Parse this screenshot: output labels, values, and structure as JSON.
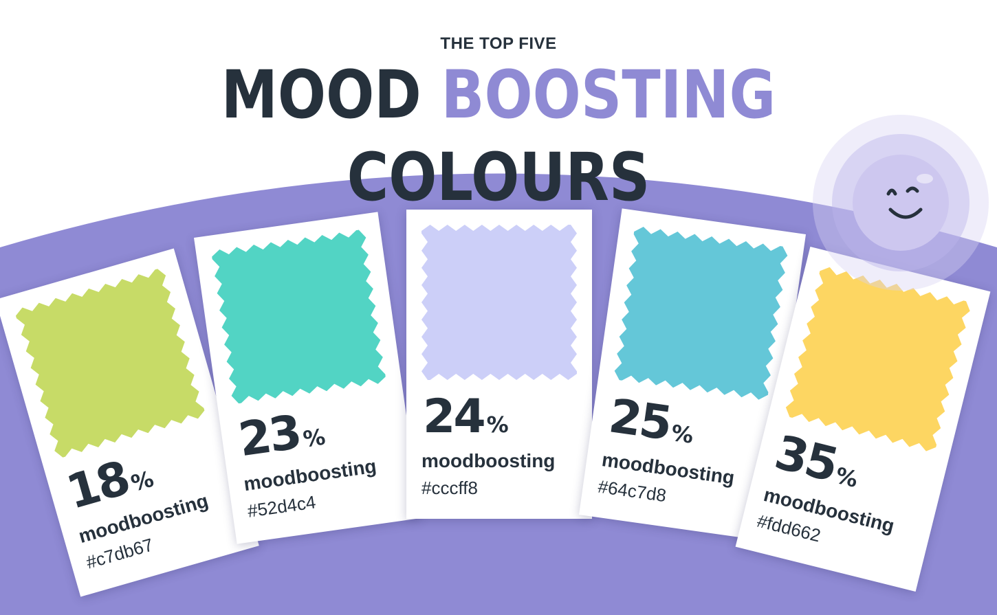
{
  "header": {
    "kicker": "THE TOP FIVE",
    "title_part1": "MOOD",
    "title_accent": "BOOSTING",
    "title_part2": "COLOURS"
  },
  "colors": {
    "background_arc": "#8f8ad4",
    "text": "#26313c",
    "accent": "#8f8ad4",
    "smiley_face": "#cdc7ef"
  },
  "cards": [
    {
      "percent": "18",
      "percent_sign": "%",
      "label": "moodboosting",
      "hex_label": "#c7db67",
      "swatch": "#c7db67"
    },
    {
      "percent": "23",
      "percent_sign": "%",
      "label": "moodboosting",
      "hex_label": "#52d4c4",
      "swatch": "#52d4c4"
    },
    {
      "percent": "24",
      "percent_sign": "%",
      "label": "moodboosting",
      "hex_label": "#cccff8",
      "swatch": "#cccff8"
    },
    {
      "percent": "25",
      "percent_sign": "%",
      "label": "moodboosting",
      "hex_label": "#64c7d8",
      "swatch": "#64c7d8"
    },
    {
      "percent": "35",
      "percent_sign": "%",
      "label": "moodboosting",
      "hex_label": "#fdd662",
      "swatch": "#fdd662"
    }
  ],
  "decorations": {
    "smiley": "smiley-face-icon"
  }
}
